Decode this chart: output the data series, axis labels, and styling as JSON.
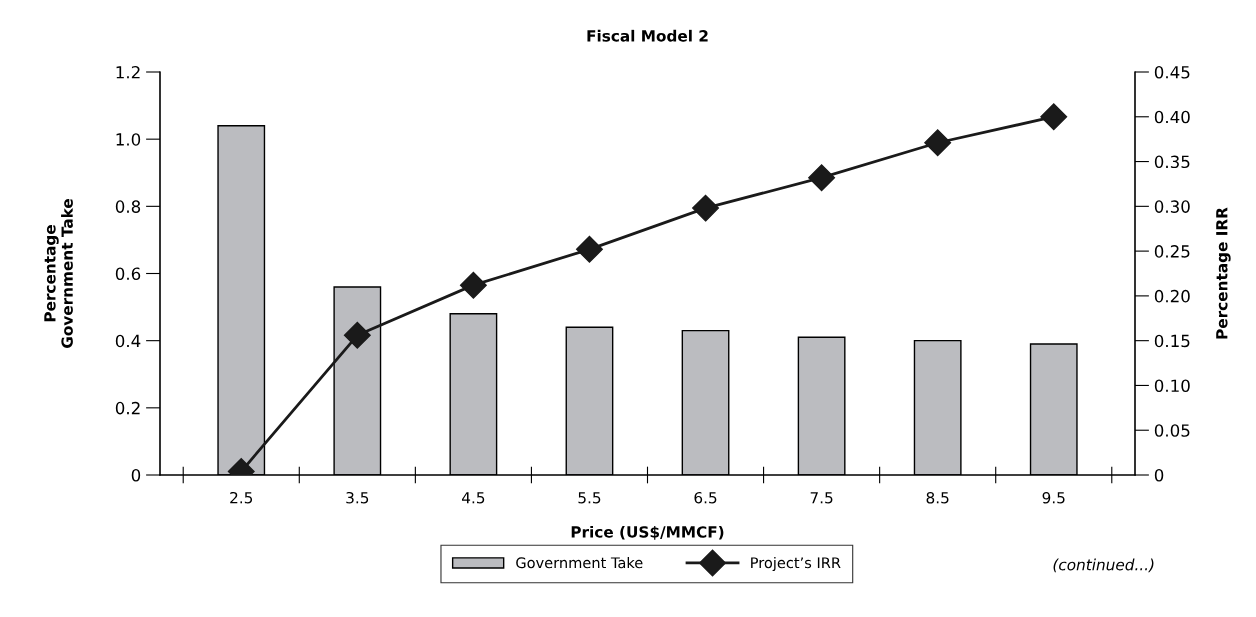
{
  "chart_data": {
    "type": "bar",
    "title": "Fiscal Model 2",
    "xlabel": "Price (US$/MMCF)",
    "ylabel": "Percentage\nGovernment Take",
    "y2label": "Percentage IRR",
    "categories": [
      "2.5",
      "3.5",
      "4.5",
      "5.5",
      "6.5",
      "7.5",
      "8.5",
      "9.5"
    ],
    "series": [
      {
        "name": "Government Take",
        "color": "#bbbcc0",
        "values": [
          1.04,
          0.56,
          0.48,
          0.44,
          0.43,
          0.41,
          0.4,
          0.39
        ]
      },
      {
        "name": "Project’s IRR",
        "type": "line",
        "axis": "y2",
        "color": "#1a1a1a",
        "marker": "diamond",
        "values": [
          0.004,
          0.156,
          0.212,
          0.252,
          0.298,
          0.332,
          0.371,
          0.4
        ]
      }
    ],
    "ylim": [
      0,
      1.2
    ],
    "yticks": [
      {
        "value": 0,
        "label": "0"
      },
      {
        "value": 0.2,
        "label": "0.2"
      },
      {
        "value": 0.4,
        "label": "0.4"
      },
      {
        "value": 0.6,
        "label": "0.6"
      },
      {
        "value": 0.8,
        "label": "0.8"
      },
      {
        "value": 1.0,
        "label": "1.0"
      },
      {
        "value": 1.2,
        "label": "1.2"
      }
    ],
    "y2lim": [
      0,
      0.45
    ],
    "y2ticks": [
      {
        "value": 0,
        "label": "0"
      },
      {
        "value": 0.05,
        "label": "0.05"
      },
      {
        "value": 0.1,
        "label": "0.10"
      },
      {
        "value": 0.15,
        "label": "0.15"
      },
      {
        "value": 0.2,
        "label": "0.20"
      },
      {
        "value": 0.25,
        "label": "0.25"
      },
      {
        "value": 0.3,
        "label": "0.30"
      },
      {
        "value": 0.35,
        "label": "0.35"
      },
      {
        "value": 0.4,
        "label": "0.40"
      },
      {
        "value": 0.45,
        "label": "0.45"
      }
    ],
    "annotations": [
      "(continued...)"
    ],
    "legend": "bottom",
    "grid": false
  }
}
